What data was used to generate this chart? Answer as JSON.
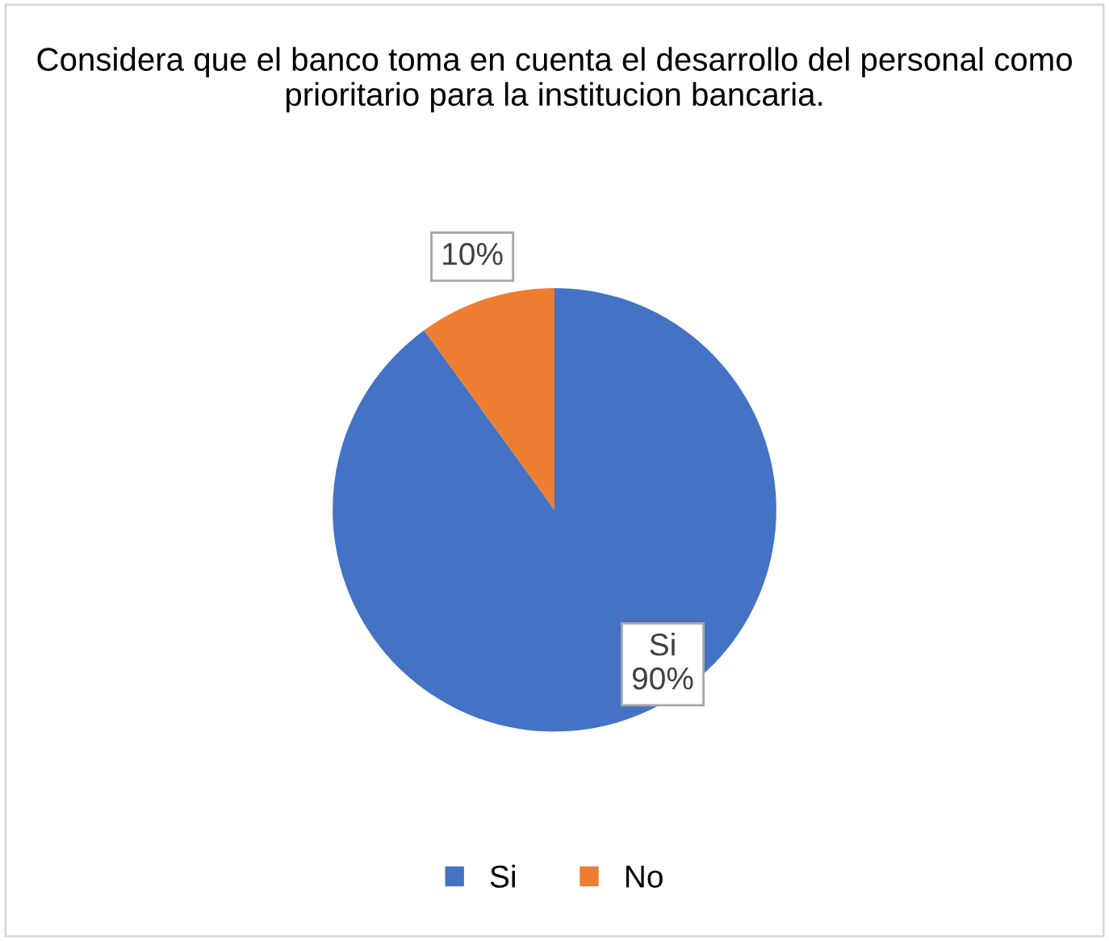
{
  "chart_data": {
    "type": "pie",
    "title": "Considera que el banco toma en cuenta el desarrollo del personal como prioritario para la institucion bancaria.",
    "categories": [
      "Si",
      "No"
    ],
    "values": [
      90,
      10
    ],
    "colors": [
      "#4472c4",
      "#ed7d31"
    ],
    "value_labels": [
      "Si\n90%",
      "10%"
    ],
    "legend": "bottom"
  }
}
